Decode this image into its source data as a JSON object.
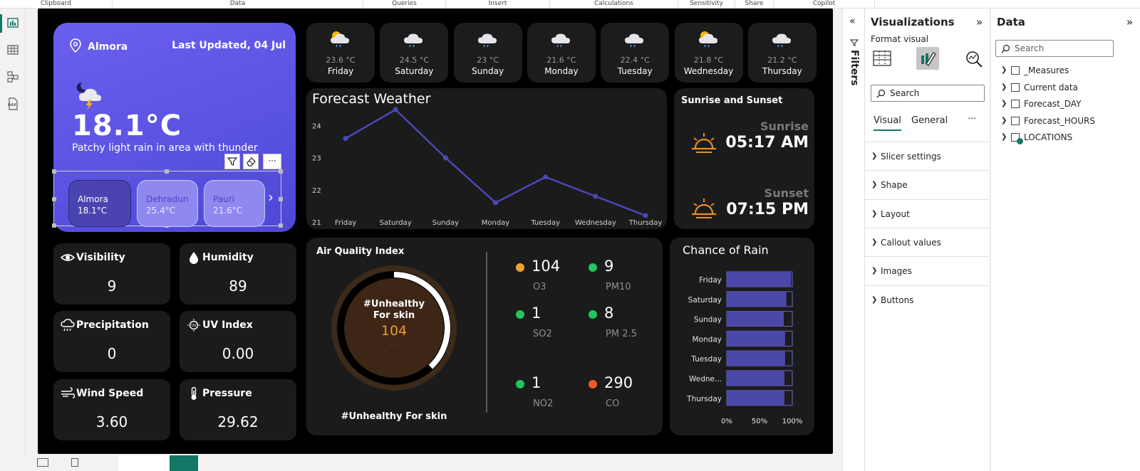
{
  "ribbon": {
    "sections": [
      {
        "label": "Clipboard"
      },
      {
        "label": "Data"
      },
      {
        "label": "Queries"
      },
      {
        "label": "Insert"
      },
      {
        "label": "Calculations"
      },
      {
        "label": "Sensitivity"
      },
      {
        "label": "Share"
      },
      {
        "label": "Copilot"
      }
    ]
  },
  "left_nav": {
    "items": [
      {
        "icon": "report-view-icon"
      },
      {
        "icon": "table-view-icon"
      },
      {
        "icon": "model-view-icon"
      },
      {
        "icon": "dax-query-icon",
        "label": "DAX"
      }
    ]
  },
  "main_card": {
    "location": "Almora",
    "last_updated": "Last Updated, 04 Jul",
    "temperature": "18.1°C",
    "condition": "Patchy light rain in area with thunder",
    "cities": [
      {
        "name": "Almora",
        "temp": "18.1°C",
        "selected": true
      },
      {
        "name": "Dehradun",
        "temp": "25.4°C",
        "selected": false
      },
      {
        "name": "Pauri",
        "temp": "21.6°C",
        "selected": false
      }
    ],
    "next_arrow": "›"
  },
  "forecast_tiles": [
    {
      "temp": "23.6 °C",
      "day": "Friday",
      "icon": "sun-cloud-rain-icon"
    },
    {
      "temp": "24.5 °C",
      "day": "Saturday",
      "icon": "cloud-rain-icon"
    },
    {
      "temp": "23 °C",
      "day": "Sunday",
      "icon": "cloud-rain-icon"
    },
    {
      "temp": "21.6 °C",
      "day": "Monday",
      "icon": "cloud-rain-icon"
    },
    {
      "temp": "22.4 °C",
      "day": "Tuesday",
      "icon": "cloud-rain-icon"
    },
    {
      "temp": "21.8 °C",
      "day": "Wednesday",
      "icon": "sun-cloud-rain-icon"
    },
    {
      "temp": "21.2 °C",
      "day": "Thursday",
      "icon": "cloud-rain-icon"
    }
  ],
  "forecast_chart": {
    "title": "Forecast Weather",
    "chart_data": {
      "type": "line",
      "title": "Forecast Weather",
      "categories": [
        "Friday",
        "Saturday",
        "Sunday",
        "Monday",
        "Tuesday",
        "Wednesday",
        "Thursday"
      ],
      "values": [
        23.6,
        24.5,
        23.0,
        21.6,
        22.4,
        21.8,
        21.2
      ],
      "yticks": [
        "21",
        "22",
        "23",
        "24"
      ],
      "ylim": [
        21,
        24.5
      ],
      "grid": false,
      "line_color": "#4a48b8"
    }
  },
  "sun_card": {
    "title": "Sunrise and Sunset",
    "sunrise_label": "Sunrise",
    "sunrise_time": "05:17 AM",
    "sunset_label": "Sunset",
    "sunset_time": "07:15 PM",
    "accent": "#e8902a"
  },
  "stats": [
    {
      "label": "Visibility",
      "value": "9",
      "icon": "eye-icon"
    },
    {
      "label": "Humidity",
      "value": "89",
      "icon": "droplet-icon"
    },
    {
      "label": "Precipitation",
      "value": "0",
      "icon": "cloud-rain-icon"
    },
    {
      "label": "UV Index",
      "value": "0.00",
      "icon": "uv-sun-icon"
    },
    {
      "label": "Wind Speed",
      "value": "3.60",
      "icon": "wind-icon"
    },
    {
      "label": "Pressure",
      "value": "29.62",
      "icon": "thermometer-icon"
    }
  ],
  "aqi": {
    "title": "Air Quality Index",
    "gauge_label_line1": "#Unhealthy",
    "gauge_label_line2": "For skin",
    "gauge_value": "104",
    "gauge_sub": "- -",
    "gauge_fraction": 0.38,
    "footer": "#Unhealthy For skin",
    "pollutants": [
      {
        "value": "104",
        "label": "O3",
        "color": "#f0a030"
      },
      {
        "value": "9",
        "label": "PM10",
        "color": "#22c55e"
      },
      {
        "value": "1",
        "label": "SO2",
        "color": "#22c55e"
      },
      {
        "value": "8",
        "label": "PM 2.5",
        "color": "#22c55e"
      },
      {
        "value": "1",
        "label": "NO2",
        "color": "#22c55e"
      },
      {
        "value": "290",
        "label": "CO",
        "color": "#ef5a2a"
      }
    ]
  },
  "rain_chart": {
    "title": "Chance of Rain",
    "chart_data": {
      "type": "bar",
      "orientation": "horizontal",
      "title": "Chance of Rain",
      "categories": [
        "Friday",
        "Saturday",
        "Sunday",
        "Monday",
        "Tuesday",
        "Wednesday",
        "Thursday"
      ],
      "tick_labels": [
        "Friday",
        "Saturday",
        "Sunday",
        "Monday",
        "Tuesday",
        "Wedne...",
        "Thursday"
      ],
      "values": [
        98,
        91,
        87,
        89,
        89,
        88,
        88
      ],
      "xticks": [
        "0%",
        "50%",
        "100%"
      ],
      "xlim": [
        0,
        100
      ],
      "bar_color": "#4b48a8"
    }
  },
  "visual_toolbar": {
    "icons": [
      "filter-icon",
      "eraser-icon",
      "more-options-icon"
    ],
    "more_label": "···"
  },
  "filters_pane": {
    "label": "Filters",
    "collapse": "«"
  },
  "viz_pane": {
    "title": "Visualizations",
    "expand": "»",
    "format_visual": "Format visual",
    "search_placeholder": "Search",
    "tabs": [
      {
        "label": "Visual",
        "active": true
      },
      {
        "label": "General",
        "active": false
      }
    ],
    "more": "···",
    "sections": [
      {
        "label": "Slicer settings"
      },
      {
        "label": "Shape"
      },
      {
        "label": "Layout"
      },
      {
        "label": "Callout values"
      },
      {
        "label": "Images"
      },
      {
        "label": "Buttons"
      }
    ]
  },
  "data_pane": {
    "title": "Data",
    "expand": "»",
    "search_placeholder": "Search",
    "tables": [
      {
        "label": "_Measures"
      },
      {
        "label": "Current data"
      },
      {
        "label": "Forecast_DAY"
      },
      {
        "label": "Forecast_HOURS"
      },
      {
        "label": "LOCATIONS"
      }
    ]
  }
}
